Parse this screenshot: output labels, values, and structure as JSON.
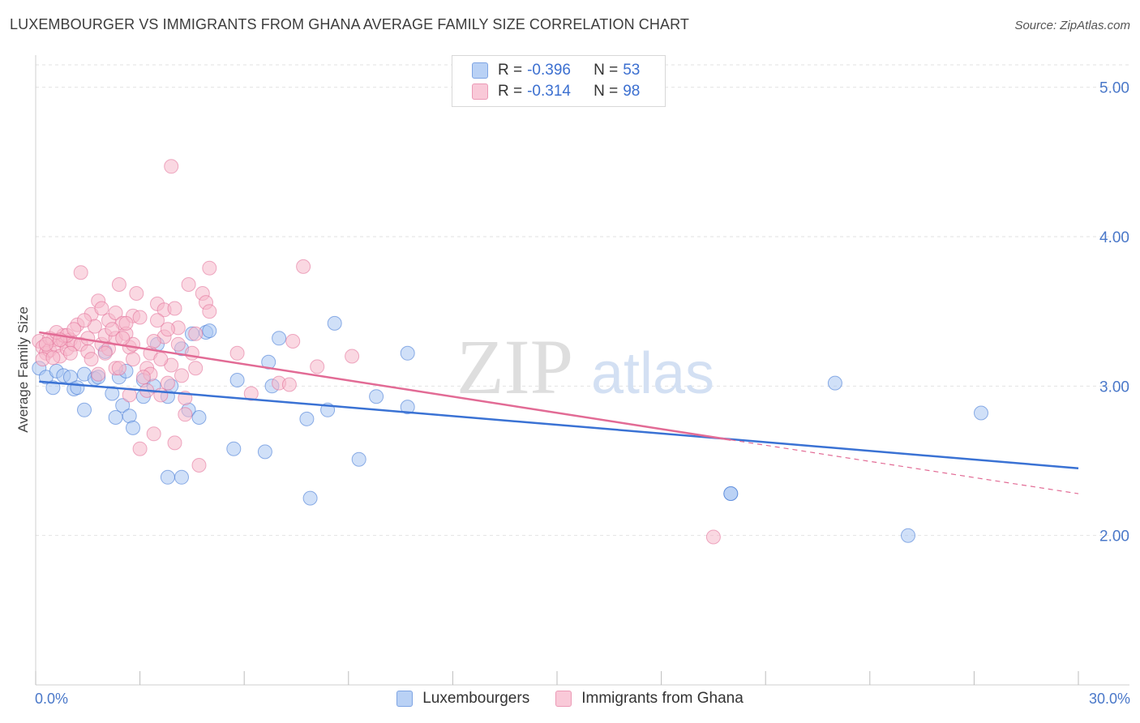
{
  "header": {
    "title": "LUXEMBOURGER VS IMMIGRANTS FROM GHANA AVERAGE FAMILY SIZE CORRELATION CHART",
    "source": "Source: ZipAtlas.com"
  },
  "watermark": {
    "zip": "ZIP",
    "atlas": "atlas"
  },
  "colors": {
    "blue": "#3a72d4",
    "blue_fill": "#a9c6f2",
    "pink": "#e26b95",
    "pink_fill": "#f6b8cb",
    "axis_text": "#4a78c9"
  },
  "legend_top": {
    "rows": [
      {
        "r_label": "R =",
        "r_value": "-0.396",
        "n_label": "N =",
        "n_value": "53"
      },
      {
        "r_label": "R =",
        "r_value": "-0.314",
        "n_label": "N =",
        "n_value": "98"
      }
    ]
  },
  "legend_bottom": {
    "series1": "Luxembourgers",
    "series2": "Immigrants from Ghana"
  },
  "chart_data": {
    "type": "scatter",
    "title": "LUXEMBOURGER VS IMMIGRANTS FROM GHANA AVERAGE FAMILY SIZE CORRELATION CHART",
    "xlabel": "",
    "ylabel": "Average Family Size",
    "xlim": [
      0,
      30
    ],
    "ylim": [
      1.0,
      5.15
    ],
    "x_tick_labels": [
      "0.0%",
      "30.0%"
    ],
    "y_ticks": [
      2.0,
      3.0,
      4.0,
      5.0
    ],
    "y_tick_labels": [
      "2.00",
      "3.00",
      "4.00",
      "5.00"
    ],
    "grid": true,
    "series": [
      {
        "name": "Luxembourgers",
        "color": "#3a72d4",
        "trend": {
          "x0": 0.1,
          "y0": 3.03,
          "x1": 30.0,
          "y1": 2.45
        },
        "points": [
          [
            0.1,
            3.12
          ],
          [
            0.3,
            3.06
          ],
          [
            0.5,
            2.99
          ],
          [
            0.6,
            3.1
          ],
          [
            0.8,
            3.07
          ],
          [
            1.0,
            3.06
          ],
          [
            1.1,
            2.98
          ],
          [
            1.2,
            2.99
          ],
          [
            1.4,
            3.08
          ],
          [
            1.4,
            2.84
          ],
          [
            1.7,
            3.05
          ],
          [
            1.8,
            3.06
          ],
          [
            2.0,
            3.23
          ],
          [
            2.2,
            2.95
          ],
          [
            2.3,
            2.79
          ],
          [
            2.4,
            3.06
          ],
          [
            2.5,
            2.87
          ],
          [
            2.6,
            3.1
          ],
          [
            2.7,
            2.8
          ],
          [
            2.8,
            2.72
          ],
          [
            3.1,
            2.93
          ],
          [
            3.1,
            3.04
          ],
          [
            3.4,
            3.0
          ],
          [
            3.5,
            3.28
          ],
          [
            3.8,
            2.93
          ],
          [
            3.8,
            2.39
          ],
          [
            3.9,
            3.0
          ],
          [
            4.2,
            2.39
          ],
          [
            4.2,
            3.25
          ],
          [
            4.4,
            2.84
          ],
          [
            4.5,
            3.35
          ],
          [
            4.7,
            2.79
          ],
          [
            4.9,
            3.36
          ],
          [
            5.0,
            3.37
          ],
          [
            5.7,
            2.58
          ],
          [
            5.8,
            3.04
          ],
          [
            6.6,
            2.56
          ],
          [
            6.7,
            3.16
          ],
          [
            6.8,
            3.0
          ],
          [
            7.0,
            3.32
          ],
          [
            7.8,
            2.78
          ],
          [
            7.9,
            2.25
          ],
          [
            8.4,
            2.84
          ],
          [
            8.6,
            3.42
          ],
          [
            9.3,
            2.51
          ],
          [
            9.8,
            2.93
          ],
          [
            10.7,
            2.86
          ],
          [
            10.7,
            3.22
          ],
          [
            20.0,
            2.28
          ],
          [
            23.0,
            3.02
          ],
          [
            25.1,
            2.0
          ],
          [
            27.2,
            2.82
          ],
          [
            20.0,
            2.28
          ]
        ]
      },
      {
        "name": "Immigrants from Ghana",
        "color": "#e26b95",
        "trend": {
          "x0": 0.1,
          "y0": 3.36,
          "x1": 20.0,
          "y1": 2.64,
          "dash_x1": 30.0,
          "dash_y1": 2.28
        },
        "points": [
          [
            0.1,
            3.3
          ],
          [
            0.2,
            3.26
          ],
          [
            0.3,
            3.22
          ],
          [
            0.4,
            3.24
          ],
          [
            0.5,
            3.31
          ],
          [
            0.6,
            3.27
          ],
          [
            0.7,
            3.2
          ],
          [
            0.8,
            3.3
          ],
          [
            0.8,
            3.34
          ],
          [
            0.9,
            3.25
          ],
          [
            1.0,
            3.31
          ],
          [
            1.1,
            3.28
          ],
          [
            1.2,
            3.41
          ],
          [
            1.3,
            3.28
          ],
          [
            1.3,
            3.76
          ],
          [
            1.5,
            3.23
          ],
          [
            1.6,
            3.48
          ],
          [
            1.7,
            3.4
          ],
          [
            1.8,
            3.57
          ],
          [
            1.8,
            3.08
          ],
          [
            1.9,
            3.28
          ],
          [
            2.0,
            3.34
          ],
          [
            2.1,
            3.25
          ],
          [
            2.1,
            3.44
          ],
          [
            2.3,
            3.12
          ],
          [
            2.3,
            3.32
          ],
          [
            2.3,
            3.49
          ],
          [
            2.4,
            3.68
          ],
          [
            2.5,
            3.42
          ],
          [
            2.6,
            3.35
          ],
          [
            2.7,
            2.94
          ],
          [
            2.7,
            3.26
          ],
          [
            2.8,
            3.47
          ],
          [
            2.8,
            3.18
          ],
          [
            2.9,
            3.62
          ],
          [
            3.0,
            3.46
          ],
          [
            3.0,
            2.58
          ],
          [
            3.2,
            3.12
          ],
          [
            3.2,
            2.97
          ],
          [
            3.3,
            3.08
          ],
          [
            3.4,
            2.68
          ],
          [
            3.5,
            3.55
          ],
          [
            3.6,
            2.94
          ],
          [
            3.7,
            3.33
          ],
          [
            3.7,
            3.51
          ],
          [
            3.8,
            3.02
          ],
          [
            3.9,
            3.14
          ],
          [
            4.0,
            3.52
          ],
          [
            4.0,
            2.62
          ],
          [
            4.1,
            3.39
          ],
          [
            4.2,
            3.07
          ],
          [
            4.3,
            2.81
          ],
          [
            4.4,
            3.68
          ],
          [
            4.5,
            3.22
          ],
          [
            4.6,
            3.35
          ],
          [
            4.7,
            2.47
          ],
          [
            4.8,
            3.62
          ],
          [
            4.9,
            3.56
          ],
          [
            5.0,
            3.5
          ],
          [
            5.0,
            3.79
          ],
          [
            5.8,
            3.22
          ],
          [
            6.2,
            2.95
          ],
          [
            7.0,
            3.02
          ],
          [
            7.3,
            3.01
          ],
          [
            7.4,
            3.3
          ],
          [
            7.7,
            3.8
          ],
          [
            8.1,
            3.13
          ],
          [
            9.1,
            3.2
          ],
          [
            3.9,
            4.47
          ],
          [
            19.5,
            1.99
          ],
          [
            0.2,
            3.18
          ],
          [
            0.4,
            3.32
          ],
          [
            0.6,
            3.36
          ],
          [
            0.9,
            3.34
          ],
          [
            1.1,
            3.38
          ],
          [
            1.4,
            3.44
          ],
          [
            1.6,
            3.18
          ],
          [
            1.9,
            3.52
          ],
          [
            2.2,
            3.38
          ],
          [
            2.4,
            3.12
          ],
          [
            2.6,
            3.42
          ],
          [
            2.8,
            3.28
          ],
          [
            3.1,
            3.06
          ],
          [
            3.3,
            3.22
          ],
          [
            3.5,
            3.44
          ],
          [
            3.6,
            3.18
          ],
          [
            3.8,
            3.38
          ],
          [
            4.1,
            3.28
          ],
          [
            4.3,
            2.92
          ],
          [
            4.6,
            3.12
          ],
          [
            0.3,
            3.28
          ],
          [
            0.5,
            3.19
          ],
          [
            0.7,
            3.31
          ],
          [
            1.0,
            3.22
          ],
          [
            1.5,
            3.32
          ],
          [
            2.0,
            3.22
          ],
          [
            2.5,
            3.32
          ],
          [
            3.4,
            3.3
          ]
        ]
      }
    ]
  }
}
